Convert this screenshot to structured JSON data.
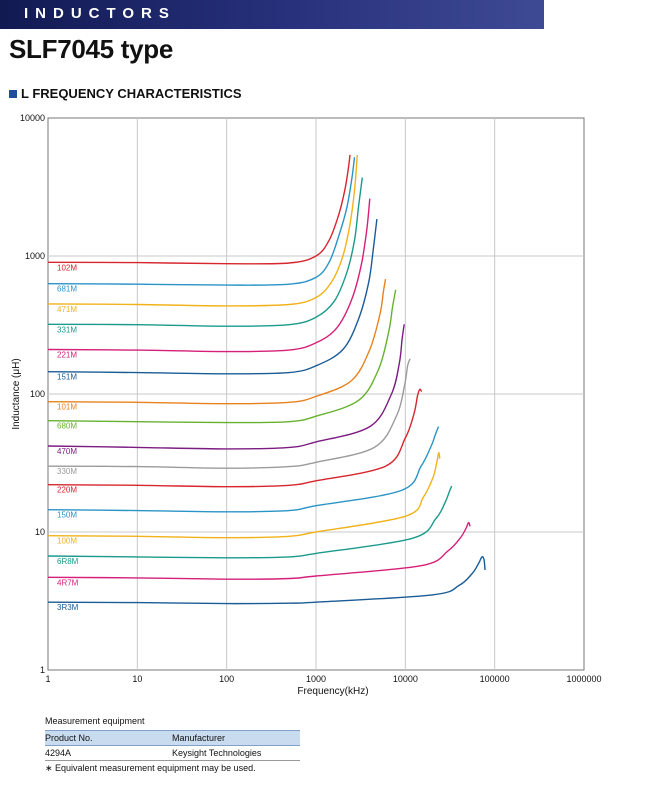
{
  "banner": {
    "text": "INDUCTORS"
  },
  "page_title": "SLF7045 type",
  "section_title": "L FREQUENCY CHARACTERISTICS",
  "chart_data": {
    "type": "line",
    "xlabel": "Frequency(kHz)",
    "ylabel": "Inductance (μH)",
    "x_scale": "log",
    "y_scale": "log",
    "xlim": [
      1,
      1000000
    ],
    "ylim": [
      1,
      10000
    ],
    "grid": true,
    "x_ticks": [
      "1",
      "10",
      "100",
      "1000",
      "10000",
      "100000",
      "1000000"
    ],
    "y_ticks": [
      "1",
      "10",
      "100",
      "1000",
      "10000"
    ],
    "series": [
      {
        "name": "102M",
        "color": "#d7262e",
        "x": [
          1,
          10,
          100,
          500,
          1000,
          1400,
          1800,
          2100,
          2300,
          2400
        ],
        "y": [
          900,
          895,
          880,
          890,
          1000,
          1300,
          2000,
          3000,
          4300,
          5400
        ]
      },
      {
        "name": "681M",
        "color": "#2a94c7",
        "x": [
          1,
          10,
          100,
          500,
          1000,
          1400,
          1800,
          2200,
          2500,
          2700
        ],
        "y": [
          630,
          625,
          615,
          625,
          700,
          900,
          1400,
          2200,
          3500,
          5200
        ]
      },
      {
        "name": "471M",
        "color": "#f2b21b",
        "x": [
          1,
          10,
          100,
          500,
          1000,
          1500,
          2000,
          2400,
          2700,
          2900
        ],
        "y": [
          450,
          445,
          435,
          445,
          500,
          650,
          1000,
          1700,
          3000,
          5400
        ]
      },
      {
        "name": "331M",
        "color": "#1a9a8c",
        "x": [
          1,
          10,
          100,
          500,
          1000,
          1600,
          2200,
          2700,
          3000,
          3300
        ],
        "y": [
          320,
          318,
          310,
          318,
          360,
          470,
          750,
          1300,
          2300,
          3700
        ]
      },
      {
        "name": "221M",
        "color": "#d61f79",
        "x": [
          1,
          10,
          100,
          500,
          1000,
          1700,
          2500,
          3200,
          3700,
          4000
        ],
        "y": [
          210,
          208,
          203,
          208,
          235,
          300,
          480,
          850,
          1550,
          2600
        ]
      },
      {
        "name": "151M",
        "color": "#1b5c96",
        "x": [
          1,
          10,
          100,
          500,
          1000,
          2000,
          3000,
          3900,
          4400,
          4800
        ],
        "y": [
          145,
          143,
          140,
          143,
          160,
          210,
          350,
          650,
          1150,
          1850
        ]
      },
      {
        "name": "101M",
        "color": "#e8821e",
        "x": [
          1,
          10,
          100,
          500,
          1000,
          2500,
          4000,
          5200,
          5700,
          6000
        ],
        "y": [
          88,
          87,
          85,
          87,
          96,
          125,
          210,
          380,
          560,
          680
        ]
      },
      {
        "name": "680M",
        "color": "#66b22e",
        "x": [
          1,
          10,
          100,
          500,
          1000,
          3000,
          5000,
          6500,
          7200,
          7800
        ],
        "y": [
          64,
          63,
          62,
          63,
          69,
          90,
          150,
          280,
          430,
          570
        ]
      },
      {
        "name": "470M",
        "color": "#7c1c82",
        "x": [
          1,
          10,
          100,
          500,
          1000,
          4000,
          7000,
          8600,
          9200,
          9700
        ],
        "y": [
          42,
          41,
          40,
          41,
          45,
          58,
          100,
          170,
          250,
          320
        ]
      },
      {
        "name": "330M",
        "color": "#9b9b9b",
        "x": [
          1,
          10,
          100,
          500,
          1000,
          4500,
          8000,
          9800,
          10600,
          11300
        ],
        "y": [
          30,
          29.8,
          29,
          29.8,
          32,
          41,
          70,
          115,
          160,
          180
        ]
      },
      {
        "name": "220M",
        "color": "#d7262e",
        "x": [
          1,
          10,
          100,
          500,
          1000,
          6000,
          10000,
          12500,
          13700,
          14500,
          15200
        ],
        "y": [
          22,
          21.8,
          21.3,
          21.8,
          23.5,
          30,
          48,
          72,
          97,
          108,
          104
        ]
      },
      {
        "name": "150M",
        "color": "#2a94c7",
        "x": [
          1,
          10,
          100,
          500,
          1000,
          9000,
          15000,
          19500,
          21500,
          23500
        ],
        "y": [
          14.5,
          14.3,
          14,
          14.3,
          15.5,
          20,
          30,
          42,
          50,
          58
        ]
      },
      {
        "name": "100M",
        "color": "#f2b21b",
        "x": [
          1,
          10,
          100,
          500,
          1000,
          10000,
          16000,
          20500,
          22500,
          23700,
          24300
        ],
        "y": [
          9.4,
          9.3,
          9.1,
          9.3,
          10,
          13,
          18,
          25,
          32,
          37.5,
          34
        ]
      },
      {
        "name": "6R8M",
        "color": "#1a9a8c",
        "x": [
          1,
          10,
          100,
          500,
          1000,
          12000,
          22000,
          28000,
          31000,
          33000
        ],
        "y": [
          6.7,
          6.6,
          6.5,
          6.6,
          7,
          9,
          12.5,
          16.5,
          19.5,
          21.5
        ]
      },
      {
        "name": "4R7M",
        "color": "#d61f79",
        "x": [
          1,
          10,
          100,
          500,
          1000,
          15000,
          30000,
          42000,
          48000,
          51000,
          53000
        ],
        "y": [
          4.7,
          4.65,
          4.55,
          4.6,
          4.8,
          5.7,
          7.3,
          9.2,
          10.7,
          11.7,
          11
        ]
      },
      {
        "name": "3R3M",
        "color": "#1b5c96",
        "x": [
          1,
          10,
          100,
          500,
          1000,
          20000,
          40000,
          56000,
          66000,
          72000,
          76000,
          78000
        ],
        "y": [
          3.1,
          3.08,
          3.03,
          3.05,
          3.1,
          3.5,
          4.1,
          5,
          5.9,
          6.6,
          6.3,
          5.3
        ]
      }
    ]
  },
  "measurement": {
    "title": "Measurement equipment",
    "headers": [
      "Product No.",
      "Manufacturer"
    ],
    "rows": [
      [
        "4294A",
        "Keysight Technologies"
      ]
    ],
    "note": "∗ Equivalent measurement equipment may be used."
  }
}
